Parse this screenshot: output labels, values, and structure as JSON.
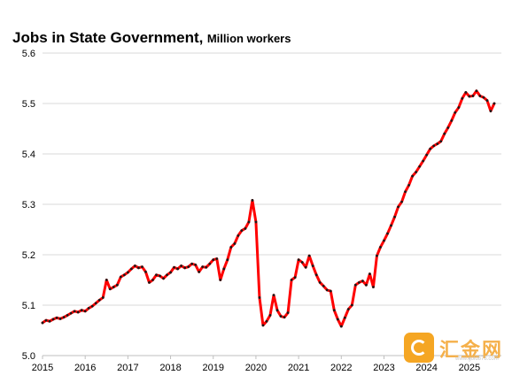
{
  "title": "Jobs in State Government,",
  "subtitle": "Million workers",
  "watermark": {
    "text": "汇金网",
    "url": "www.gold678.com"
  },
  "colors": {
    "line": "#ff0000",
    "markers": "#1a1a1a",
    "grid": "#d9d9d9"
  },
  "chart_data": {
    "type": "line",
    "title": "Jobs in State Government,",
    "subtitle": "Million workers",
    "xlabel": "",
    "ylabel": "",
    "xlim": [
      2015.0,
      2025.75
    ],
    "ylim": [
      5.0,
      5.6
    ],
    "y_ticks": [
      5.0,
      5.1,
      5.2,
      5.3,
      5.4,
      5.5,
      5.6
    ],
    "y_tick_labels": [
      "5.0",
      "5.1",
      "5.2",
      "5.3",
      "5.4",
      "5.5",
      "5.6"
    ],
    "x_tick_labels": [
      "2015",
      "2016",
      "2017",
      "2018",
      "2019",
      "2020",
      "2021",
      "2022",
      "2023",
      "2024",
      "2025"
    ],
    "grid": {
      "horizontal": true,
      "vertical": false
    },
    "legend": "none",
    "series": [
      {
        "start": "2015-01",
        "frequency": "monthly",
        "values": [
          5.065,
          5.07,
          5.068,
          5.072,
          5.075,
          5.073,
          5.076,
          5.08,
          5.084,
          5.088,
          5.086,
          5.09,
          5.088,
          5.094,
          5.098,
          5.104,
          5.11,
          5.115,
          5.15,
          5.132,
          5.136,
          5.14,
          5.156,
          5.16,
          5.165,
          5.172,
          5.178,
          5.174,
          5.176,
          5.166,
          5.145,
          5.15,
          5.16,
          5.158,
          5.153,
          5.16,
          5.165,
          5.175,
          5.172,
          5.178,
          5.174,
          5.176,
          5.182,
          5.18,
          5.166,
          5.176,
          5.175,
          5.182,
          5.19,
          5.192,
          5.15,
          5.172,
          5.19,
          5.215,
          5.222,
          5.238,
          5.248,
          5.252,
          5.265,
          5.308,
          5.265,
          5.115,
          5.06,
          5.068,
          5.08,
          5.12,
          5.09,
          5.078,
          5.076,
          5.085,
          5.15,
          5.155,
          5.19,
          5.185,
          5.175,
          5.198,
          5.178,
          5.16,
          5.145,
          5.138,
          5.13,
          5.128,
          5.09,
          5.072,
          5.058,
          5.075,
          5.092,
          5.1,
          5.14,
          5.145,
          5.148,
          5.14,
          5.162,
          5.136,
          5.198,
          5.215,
          5.228,
          5.242,
          5.258,
          5.275,
          5.295,
          5.305,
          5.325,
          5.338,
          5.356,
          5.364,
          5.375,
          5.386,
          5.398,
          5.41,
          5.416,
          5.42,
          5.425,
          5.44,
          5.452,
          5.466,
          5.482,
          5.492,
          5.51,
          5.522,
          5.514,
          5.515,
          5.525,
          5.515,
          5.512,
          5.506,
          5.485,
          5.5
        ]
      }
    ]
  }
}
